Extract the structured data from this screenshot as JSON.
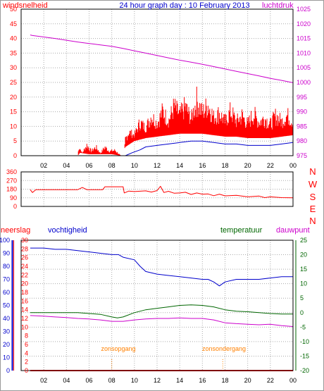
{
  "chart_data": [
    {
      "type": "line",
      "title": "24 hour graph day : 10 February 2013",
      "x_ticks": [
        "02",
        "04",
        "06",
        "08",
        "10",
        "12",
        "14",
        "16",
        "18",
        "20",
        "22",
        "00"
      ],
      "left_axis": {
        "label": "windsnelheid",
        "ticks": [
          0,
          5,
          10,
          15,
          20,
          25,
          30,
          35,
          40,
          45,
          50
        ],
        "range": [
          0,
          50
        ],
        "color": "#ff0000"
      },
      "right_axis": {
        "label": "luchtdruk",
        "ticks": [
          975,
          980,
          985,
          990,
          995,
          1000,
          1005,
          1010,
          1015,
          1020,
          1025
        ],
        "range": [
          975,
          1025
        ],
        "color": "#cc00cc"
      },
      "grid": true,
      "series": [
        {
          "color": "#cc00cc",
          "axis": "right",
          "points": [
            [
              0.8,
              1016.2
            ],
            [
              1,
              1016
            ],
            [
              2,
              1015.5
            ],
            [
              3,
              1015
            ],
            [
              4,
              1014.4
            ],
            [
              5,
              1013.8
            ],
            [
              6,
              1013.3
            ],
            [
              7,
              1012.8
            ],
            [
              8,
              1012.3
            ],
            [
              9,
              1011.6
            ],
            [
              10,
              1010.8
            ],
            [
              11,
              1010
            ],
            [
              12,
              1009.2
            ],
            [
              13,
              1008.4
            ],
            [
              14,
              1007.6
            ],
            [
              15,
              1006.9
            ],
            [
              16,
              1006.2
            ],
            [
              17,
              1005.4
            ],
            [
              18,
              1004.6
            ],
            [
              19,
              1003.8
            ],
            [
              20,
              1003
            ],
            [
              21,
              1002.2
            ],
            [
              22,
              1001.4
            ],
            [
              23,
              1000.7
            ],
            [
              24,
              999.9
            ]
          ]
        },
        {
          "color": "#ff0000",
          "axis": "left",
          "style": "gusts",
          "points": [
            [
              0.8,
              0
            ],
            [
              5.0,
              0
            ],
            [
              5.1,
              4
            ],
            [
              5.4,
              1
            ],
            [
              5.8,
              5
            ],
            [
              6.2,
              2
            ],
            [
              6.6,
              4
            ],
            [
              7.0,
              1
            ],
            [
              7.4,
              4
            ],
            [
              7.8,
              2
            ],
            [
              8.3,
              2.5
            ],
            [
              8.8,
              0
            ],
            [
              9.1,
              1
            ],
            [
              9.2,
              7
            ],
            [
              9.5,
              10
            ],
            [
              10.0,
              8
            ],
            [
              10.5,
              14
            ],
            [
              11,
              11
            ],
            [
              11.5,
              17
            ],
            [
              12,
              13
            ],
            [
              12.5,
              19
            ],
            [
              13,
              14
            ],
            [
              13.5,
              21
            ],
            [
              14,
              17
            ],
            [
              14.5,
              21
            ],
            [
              15,
              15
            ],
            [
              15.5,
              24
            ],
            [
              16,
              18
            ],
            [
              16.5,
              22
            ],
            [
              17,
              16
            ],
            [
              17.5,
              18
            ],
            [
              18,
              14
            ],
            [
              18.5,
              19
            ],
            [
              19,
              14
            ],
            [
              19.5,
              17
            ],
            [
              20,
              13
            ],
            [
              20.5,
              18
            ],
            [
              21,
              14
            ],
            [
              21.5,
              16
            ],
            [
              22,
              13
            ],
            [
              22.5,
              17
            ],
            [
              23,
              14
            ],
            [
              23.5,
              17
            ],
            [
              24,
              13
            ]
          ]
        },
        {
          "color": "#ff0000",
          "axis": "left",
          "style": "gusts",
          "points": [
            [
              0.8,
              0
            ],
            [
              5.0,
              0
            ],
            [
              5.2,
              1
            ],
            [
              6.0,
              0.5
            ],
            [
              7.0,
              0.5
            ],
            [
              8.0,
              0.5
            ],
            [
              8.8,
              0
            ],
            [
              9.2,
              3
            ],
            [
              10,
              5
            ],
            [
              11,
              6
            ],
            [
              12,
              6.5
            ],
            [
              13,
              7
            ],
            [
              14,
              7.5
            ],
            [
              15,
              7.5
            ],
            [
              16,
              7.5
            ],
            [
              17,
              7
            ],
            [
              18,
              6.5
            ],
            [
              19,
              6.5
            ],
            [
              20,
              6
            ],
            [
              21,
              6
            ],
            [
              22,
              6
            ],
            [
              23,
              6.5
            ],
            [
              24,
              7
            ]
          ]
        },
        {
          "color": "#0000cc",
          "axis": "left",
          "points": [
            [
              9.2,
              0
            ],
            [
              9.8,
              1
            ],
            [
              10.5,
              2
            ],
            [
              11,
              3
            ],
            [
              12,
              3.5
            ],
            [
              13,
              4
            ],
            [
              14,
              4.5
            ],
            [
              15,
              5
            ],
            [
              16,
              5
            ],
            [
              17,
              4.5
            ],
            [
              18,
              4
            ],
            [
              19,
              4
            ],
            [
              20,
              3.5
            ],
            [
              21,
              3.5
            ],
            [
              22,
              3.5
            ],
            [
              23,
              4
            ],
            [
              24,
              4.5
            ]
          ]
        }
      ]
    },
    {
      "type": "line",
      "y_ticks": [
        0,
        90,
        180,
        270,
        360
      ],
      "y_range": [
        0,
        360
      ],
      "compass_labels": [
        "N",
        "W",
        "S",
        "E",
        "N"
      ],
      "grid": true,
      "series": [
        {
          "color": "#ff0000",
          "points": [
            [
              0.8,
              175
            ],
            [
              1.0,
              145
            ],
            [
              1.3,
              175
            ],
            [
              2,
              175
            ],
            [
              3,
              175
            ],
            [
              4,
              175
            ],
            [
              5,
              175
            ],
            [
              5.4,
              198
            ],
            [
              5.8,
              175
            ],
            [
              6.5,
              175
            ],
            [
              7.2,
              175
            ],
            [
              7.4,
              205
            ],
            [
              8,
              205
            ],
            [
              9,
              205
            ],
            [
              9.1,
              140
            ],
            [
              9.5,
              160
            ],
            [
              10,
              155
            ],
            [
              11,
              162
            ],
            [
              11.5,
              150
            ],
            [
              12,
              165
            ],
            [
              12.3,
              210
            ],
            [
              12.6,
              145
            ],
            [
              13,
              158
            ],
            [
              13.5,
              138
            ],
            [
              14,
              140
            ],
            [
              14.5,
              148
            ],
            [
              15,
              125
            ],
            [
              15.5,
              140
            ],
            [
              16,
              128
            ],
            [
              16.5,
              130
            ],
            [
              17,
              112
            ],
            [
              17.5,
              128
            ],
            [
              18,
              110
            ],
            [
              19,
              115
            ],
            [
              20,
              100
            ],
            [
              21,
              108
            ],
            [
              21.5,
              92
            ],
            [
              22,
              100
            ],
            [
              23,
              92
            ],
            [
              24,
              90
            ]
          ]
        }
      ]
    },
    {
      "type": "line",
      "x_ticks": [
        "02",
        "04",
        "06",
        "08",
        "10",
        "12",
        "14",
        "16",
        "18",
        "20",
        "22",
        "00"
      ],
      "axes": [
        {
          "label": "neerslag",
          "ticks": [
            0,
            10,
            20,
            30,
            40,
            50,
            60,
            70,
            80,
            90,
            100
          ],
          "color": "#ff0000"
        },
        {
          "label": "vochtigheid",
          "ticks": [
            0,
            2,
            4,
            6,
            8,
            10,
            12,
            14,
            16,
            18,
            20,
            22,
            24,
            26,
            28,
            30
          ],
          "color": "#0000cc"
        },
        {
          "label": "temperatuur",
          "ticks": [
            -20,
            -15,
            -10,
            -5,
            0,
            5,
            10,
            15,
            20,
            25
          ],
          "range": [
            -20,
            25
          ],
          "color": "#006600"
        },
        {
          "label": "dauwpunt",
          "color": "#cc00cc"
        }
      ],
      "annotations": [
        {
          "text": "zonsopgang",
          "x": 8.0
        },
        {
          "text": "zonsondergang",
          "x": 17.8
        }
      ],
      "grid": true,
      "series": [
        {
          "color": "#0000cc",
          "axis": "vochtigheid",
          "points": [
            [
              0.8,
              94
            ],
            [
              2,
              94
            ],
            [
              3,
              93
            ],
            [
              4,
              93
            ],
            [
              5,
              92
            ],
            [
              6,
              91
            ],
            [
              7,
              90
            ],
            [
              8,
              89
            ],
            [
              8.6,
              89
            ],
            [
              9,
              87
            ],
            [
              10,
              85
            ],
            [
              10.5,
              80
            ],
            [
              11,
              76
            ],
            [
              12,
              74
            ],
            [
              13,
              73
            ],
            [
              14,
              72
            ],
            [
              15,
              71
            ],
            [
              16,
              70
            ],
            [
              16.5,
              70
            ],
            [
              17,
              68
            ],
            [
              17.5,
              65
            ],
            [
              18,
              68
            ],
            [
              19,
              70
            ],
            [
              20,
              70
            ],
            [
              21,
              70
            ],
            [
              22,
              71
            ],
            [
              23,
              72
            ],
            [
              24,
              72
            ]
          ]
        },
        {
          "color": "#006600",
          "axis": "temperatuur",
          "points": [
            [
              0.8,
              0
            ],
            [
              2,
              0
            ],
            [
              3,
              0
            ],
            [
              4,
              0
            ],
            [
              5,
              0
            ],
            [
              6,
              -0.3
            ],
            [
              7,
              -0.6
            ],
            [
              8,
              -1.5
            ],
            [
              8.5,
              -1.8
            ],
            [
              9,
              -1.5
            ],
            [
              10,
              0
            ],
            [
              11,
              1
            ],
            [
              12,
              1.5
            ],
            [
              13,
              2
            ],
            [
              14,
              2.5
            ],
            [
              15,
              2.7
            ],
            [
              16,
              2.5
            ],
            [
              17,
              2
            ],
            [
              18,
              1
            ],
            [
              19,
              0.5
            ],
            [
              20,
              0.3
            ],
            [
              21,
              0
            ],
            [
              22,
              -0.3
            ],
            [
              23,
              -0.5
            ],
            [
              24,
              -0.5
            ]
          ]
        },
        {
          "color": "#cc00cc",
          "axis": "temperatuur",
          "points": [
            [
              0.8,
              -1
            ],
            [
              2,
              -1.2
            ],
            [
              3,
              -1.5
            ],
            [
              4,
              -1.7
            ],
            [
              5,
              -2
            ],
            [
              6,
              -2.2
            ],
            [
              7,
              -2.5
            ],
            [
              8,
              -3
            ],
            [
              9,
              -3
            ],
            [
              10,
              -2.5
            ],
            [
              11,
              -2.2
            ],
            [
              12,
              -2
            ],
            [
              13,
              -2
            ],
            [
              14,
              -1.8
            ],
            [
              15,
              -2
            ],
            [
              16,
              -2
            ],
            [
              17,
              -2.5
            ],
            [
              18,
              -3.5
            ],
            [
              19,
              -3.8
            ],
            [
              20,
              -4
            ],
            [
              21,
              -4.2
            ],
            [
              22,
              -4
            ],
            [
              23,
              -4.5
            ],
            [
              24,
              -4.8
            ]
          ]
        },
        {
          "color": "#ff0000",
          "axis": "neerslag",
          "points": [
            [
              0.8,
              0
            ],
            [
              24,
              0
            ]
          ]
        }
      ]
    }
  ]
}
